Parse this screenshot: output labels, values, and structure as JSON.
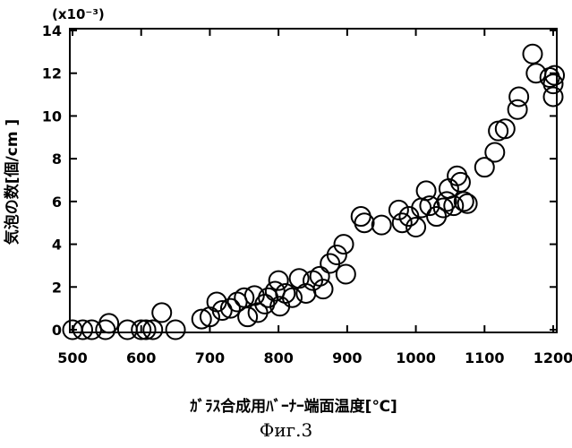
{
  "figure_caption": "Фиг.3",
  "chart_data": {
    "type": "scatter",
    "title": "",
    "xlabel": "ｶﾞﾗｽ合成用ﾊﾞｰﾅｰ端面温度[℃]",
    "ylabel": "気泡の数[個/cm ]",
    "y_multiplier": "(x10⁻³)",
    "xlim": [
      500,
      1200
    ],
    "ylim": [
      0,
      14
    ],
    "x_ticks": [
      "500",
      "600",
      "700",
      "800",
      "900",
      "1000",
      "1100",
      "1200"
    ],
    "y_ticks": [
      "0",
      "2",
      "4",
      "6",
      "8",
      "10",
      "12",
      "14"
    ],
    "grid": false,
    "marker": "open-circle",
    "points": [
      [
        500,
        0
      ],
      [
        515,
        0
      ],
      [
        528,
        0
      ],
      [
        548,
        0
      ],
      [
        553,
        0.3
      ],
      [
        580,
        0
      ],
      [
        600,
        0
      ],
      [
        607,
        0
      ],
      [
        617,
        0
      ],
      [
        630,
        0.8
      ],
      [
        650,
        0
      ],
      [
        688,
        0.5
      ],
      [
        700,
        0.6
      ],
      [
        710,
        1.3
      ],
      [
        718,
        0.9
      ],
      [
        730,
        1.0
      ],
      [
        740,
        1.3
      ],
      [
        750,
        1.5
      ],
      [
        755,
        0.6
      ],
      [
        765,
        1.6
      ],
      [
        770,
        0.8
      ],
      [
        780,
        1.2
      ],
      [
        785,
        1.5
      ],
      [
        795,
        1.8
      ],
      [
        800,
        2.3
      ],
      [
        802,
        1.1
      ],
      [
        810,
        1.7
      ],
      [
        820,
        1.5
      ],
      [
        830,
        2.4
      ],
      [
        840,
        1.7
      ],
      [
        850,
        2.3
      ],
      [
        860,
        2.5
      ],
      [
        865,
        1.9
      ],
      [
        875,
        3.1
      ],
      [
        885,
        3.5
      ],
      [
        895,
        4.0
      ],
      [
        898,
        2.6
      ],
      [
        920,
        5.3
      ],
      [
        925,
        5.0
      ],
      [
        950,
        4.9
      ],
      [
        975,
        5.6
      ],
      [
        980,
        5.0
      ],
      [
        990,
        5.3
      ],
      [
        1000,
        4.8
      ],
      [
        1008,
        5.7
      ],
      [
        1015,
        6.5
      ],
      [
        1020,
        5.8
      ],
      [
        1030,
        5.3
      ],
      [
        1040,
        5.7
      ],
      [
        1045,
        6.0
      ],
      [
        1048,
        6.6
      ],
      [
        1055,
        5.8
      ],
      [
        1060,
        7.2
      ],
      [
        1065,
        6.9
      ],
      [
        1070,
        6.0
      ],
      [
        1075,
        5.9
      ],
      [
        1100,
        7.6
      ],
      [
        1115,
        8.3
      ],
      [
        1120,
        9.3
      ],
      [
        1130,
        9.4
      ],
      [
        1148,
        10.3
      ],
      [
        1150,
        10.9
      ],
      [
        1170,
        12.9
      ],
      [
        1175,
        12.0
      ],
      [
        1195,
        11.8
      ],
      [
        1200,
        11.5
      ],
      [
        1200,
        10.9
      ],
      [
        1202,
        11.9
      ]
    ]
  }
}
